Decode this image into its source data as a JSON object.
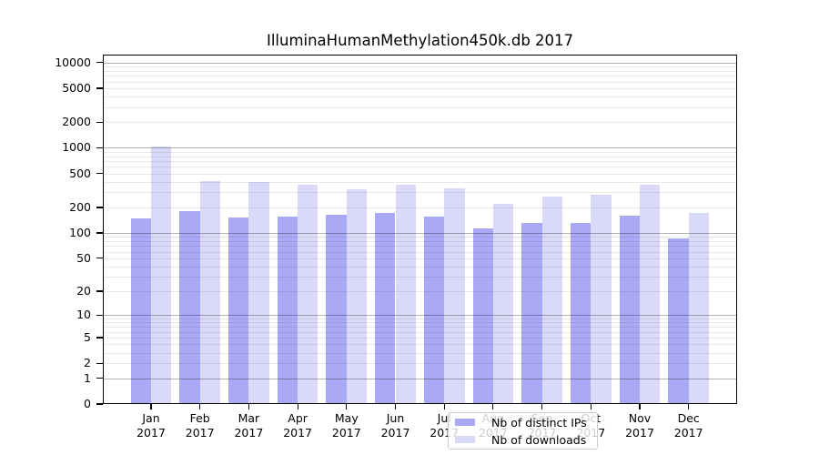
{
  "chart_data": {
    "type": "bar",
    "title": "IlluminaHumanMethylation450k.db 2017",
    "categories": [
      "Jan",
      "Feb",
      "Mar",
      "Apr",
      "May",
      "Jun",
      "Jul",
      "Aug",
      "Sep",
      "Oct",
      "Nov",
      "Dec"
    ],
    "year": "2017",
    "series": [
      {
        "name": "Nb of distinct IPs",
        "color": "#a9a9f5",
        "values": [
          148,
          183,
          152,
          157,
          165,
          173,
          155,
          114,
          131,
          130,
          161,
          87
        ]
      },
      {
        "name": "Nb of downloads",
        "color": "#dbd9f8",
        "values": [
          1040,
          408,
          400,
          367,
          325,
          370,
          333,
          221,
          270,
          282,
          367,
          171
        ]
      }
    ],
    "yscale": "log10(v+1)",
    "yticks": [
      0,
      1,
      2,
      5,
      10,
      20,
      50,
      100,
      200,
      500,
      1000,
      2000,
      5000,
      10000
    ],
    "ylim": [
      0,
      12400
    ],
    "xlabel": "",
    "ylabel": "",
    "grid": true,
    "legend_position": "lower center"
  },
  "colors": {
    "grid_major": "rgba(0,0,0,0.30)",
    "grid_minor": "rgba(0,0,0,0.085)",
    "axis": "#000000",
    "background": "#ffffff"
  }
}
